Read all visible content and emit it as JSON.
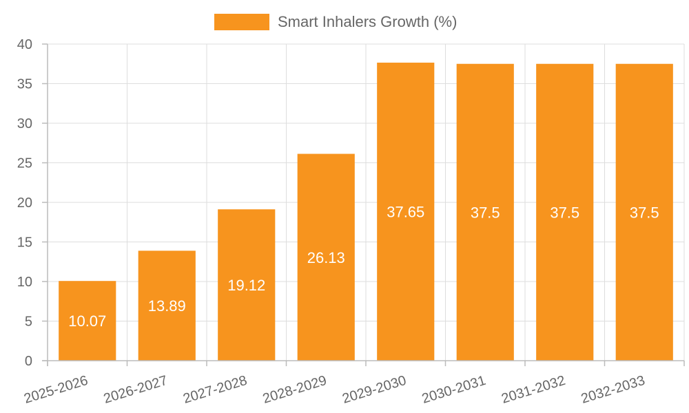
{
  "colors": {
    "bar": "#F7941E",
    "grid": "#DDDDDD",
    "axis": "#BBBBBB",
    "text": "#666666",
    "bar_label": "#FFFFFF"
  },
  "chart_data": {
    "type": "bar",
    "categories": [
      "2025-2026",
      "2026-2027",
      "2027-2028",
      "2028-2029",
      "2029-2030",
      "2030-2031",
      "2031-2032",
      "2032-2033"
    ],
    "series": [
      {
        "name": "Smart Inhalers Growth (%)",
        "values": [
          10.07,
          13.89,
          19.12,
          26.13,
          37.65,
          37.5,
          37.5,
          37.5
        ]
      }
    ],
    "title": "",
    "xlabel": "",
    "ylabel": "",
    "ylim": [
      0,
      40
    ],
    "yticks": [
      0,
      5,
      10,
      15,
      20,
      25,
      30,
      35,
      40
    ],
    "grid": true,
    "legend": "top-center",
    "data_labels": true
  }
}
